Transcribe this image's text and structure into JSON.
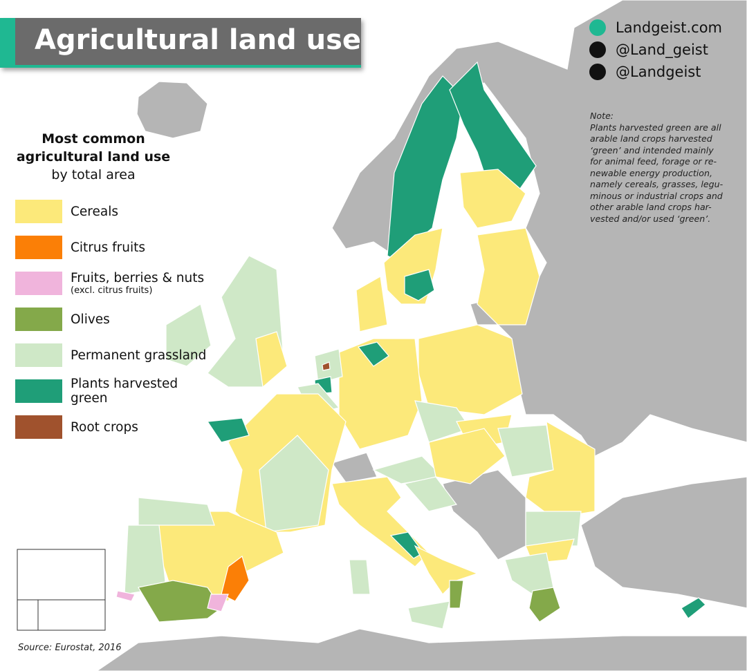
{
  "header": {
    "title": "Agricultural land use"
  },
  "social": [
    "Landgeist.com",
    "@Land_geist",
    "@Landgeist"
  ],
  "legend": {
    "title_lines": [
      "Most common",
      "agricultural land use",
      "by total area"
    ],
    "items": [
      {
        "label": "Cereals",
        "color": "#fce97a"
      },
      {
        "label": "Citrus fruits",
        "color": "#fb7f06"
      },
      {
        "label": "Fruits, berries & nuts",
        "sublabel": "(excl. citrus fruits)",
        "color": "#f0b4dc"
      },
      {
        "label": "Olives",
        "color": "#84a94a"
      },
      {
        "label": "Permanent grassland",
        "color": "#cfe8c7"
      },
      {
        "label": "Plants harvested green",
        "color": "#1f9e78"
      },
      {
        "label": "Root crops",
        "color": "#a0522d"
      }
    ]
  },
  "note": {
    "heading": "Note:",
    "lines": [
      "Plants harvested green are all",
      "arable land crops harvested",
      "‘green’ and intended mainly",
      "for animal feed, forage or re-",
      "newable energy production,",
      "namely cereals, grasses, legu-",
      "minous or industrial crops and",
      "other arable land crops har-",
      "vested and/or used ‘green’."
    ]
  },
  "source": "Source: Eurostat, 2016"
}
